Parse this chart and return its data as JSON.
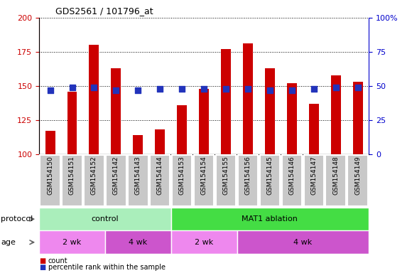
{
  "title": "GDS2561 / 101796_at",
  "samples": [
    "GSM154150",
    "GSM154151",
    "GSM154152",
    "GSM154142",
    "GSM154143",
    "GSM154144",
    "GSM154153",
    "GSM154154",
    "GSM154155",
    "GSM154156",
    "GSM154145",
    "GSM154146",
    "GSM154147",
    "GSM154148",
    "GSM154149"
  ],
  "counts": [
    117,
    146,
    180,
    163,
    114,
    118,
    136,
    148,
    177,
    181,
    163,
    152,
    137,
    158,
    153
  ],
  "percentiles": [
    47,
    49,
    49,
    47,
    47,
    48,
    48,
    48,
    48,
    48,
    47,
    47,
    48,
    49,
    49
  ],
  "ymin": 100,
  "ymax": 200,
  "yticks": [
    100,
    125,
    150,
    175,
    200
  ],
  "y2min": 0,
  "y2max": 100,
  "y2ticks": [
    0,
    25,
    50,
    75,
    100
  ],
  "bar_color": "#cc0000",
  "dot_color": "#2233bb",
  "protocol_groups": [
    {
      "label": "control",
      "start": 0,
      "end": 6,
      "color": "#aaeebb"
    },
    {
      "label": "MAT1 ablation",
      "start": 6,
      "end": 15,
      "color": "#44dd44"
    }
  ],
  "age_groups": [
    {
      "label": "2 wk",
      "start": 0,
      "end": 3,
      "color": "#ee88ee"
    },
    {
      "label": "4 wk",
      "start": 3,
      "end": 6,
      "color": "#cc55cc"
    },
    {
      "label": "2 wk",
      "start": 6,
      "end": 9,
      "color": "#ee88ee"
    },
    {
      "label": "4 wk",
      "start": 9,
      "end": 15,
      "color": "#cc55cc"
    }
  ],
  "bar_width": 0.45,
  "dot_size": 32,
  "xcell_color": "#c8c8c8",
  "xcell_edgecolor": "white"
}
